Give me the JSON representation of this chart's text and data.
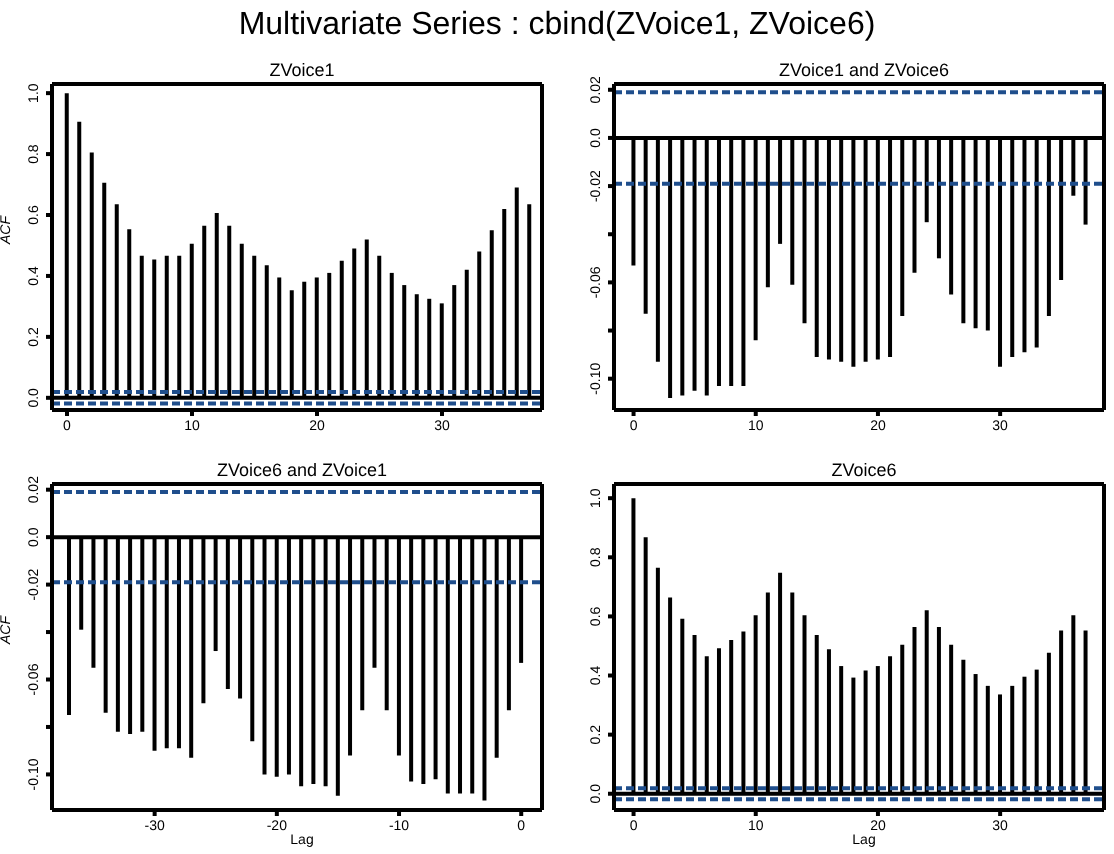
{
  "chart_data": [
    {
      "type": "bar",
      "title": "Multivariate Series : cbind(ZVoice1, ZVoice6)",
      "subtitle": "ZVoice1",
      "ylabel": "ACF",
      "color": "#000000",
      "x": [
        0,
        1,
        2,
        3,
        4,
        5,
        6,
        7,
        8,
        9,
        10,
        11,
        12,
        13,
        14,
        15,
        16,
        17,
        18,
        19,
        20,
        21,
        22,
        23,
        24,
        25,
        26,
        27,
        28,
        29,
        30,
        31,
        32,
        33,
        34,
        35,
        36,
        37
      ],
      "values": [
        1.0,
        0.906,
        0.805,
        0.706,
        0.635,
        0.553,
        0.466,
        0.454,
        0.466,
        0.466,
        0.506,
        0.565,
        0.607,
        0.565,
        0.506,
        0.466,
        0.435,
        0.395,
        0.353,
        0.381,
        0.395,
        0.41,
        0.45,
        0.49,
        0.52,
        0.466,
        0.41,
        0.37,
        0.34,
        0.325,
        0.31,
        0.37,
        0.42,
        0.48,
        0.55,
        0.62,
        0.69,
        0.635
      ],
      "xlim": [
        -1.2,
        38
      ],
      "xticks": [
        0,
        10,
        20,
        30
      ],
      "ylim": [
        -0.04,
        1.03
      ],
      "yticks": [
        {
          "value": 0,
          "label": "0.0"
        },
        0.2,
        0.4,
        0.6,
        0.8,
        {
          "value": 1,
          "label": "1.0"
        }
      ],
      "ref_lines": [
        {
          "axis": "y",
          "value": 0,
          "color": "#000000",
          "line_style": "solid"
        },
        {
          "axis": "y",
          "value": 0.019,
          "color": "#1f4e8c",
          "line_style": "dashed"
        },
        {
          "axis": "y",
          "value": -0.019,
          "color": "#1f4e8c",
          "line_style": "dashed"
        }
      ]
    },
    {
      "type": "bar",
      "title": "ZVoice1 and ZVoice6",
      "color": "#000000",
      "x": [
        0,
        1,
        2,
        3,
        4,
        5,
        6,
        7,
        8,
        9,
        10,
        11,
        12,
        13,
        14,
        15,
        16,
        17,
        18,
        19,
        20,
        21,
        22,
        23,
        24,
        25,
        26,
        27,
        28,
        29,
        30,
        31,
        32,
        33,
        34,
        35,
        36,
        37
      ],
      "values": [
        -0.053,
        -0.073,
        -0.093,
        -0.108,
        -0.107,
        -0.105,
        -0.107,
        -0.103,
        -0.103,
        -0.103,
        -0.084,
        -0.062,
        -0.044,
        -0.061,
        -0.077,
        -0.091,
        -0.092,
        -0.093,
        -0.095,
        -0.093,
        -0.092,
        -0.091,
        -0.074,
        -0.056,
        -0.035,
        -0.05,
        -0.065,
        -0.077,
        -0.079,
        -0.08,
        -0.095,
        -0.091,
        -0.089,
        -0.087,
        -0.074,
        -0.059,
        -0.024,
        -0.036
      ],
      "xlim": [
        -1.6,
        38.5
      ],
      "xticks": [
        0,
        10,
        20,
        30
      ],
      "ylim": [
        -0.113,
        0.0224
      ],
      "yticks": [
        0.02,
        {
          "value": 0,
          "label": "0.0"
        },
        -0.02,
        {
          "value": -0.04,
          "label": null
        },
        -0.06,
        {
          "value": -0.08,
          "label": null
        },
        {
          "value": -0.1,
          "label": "-0.10"
        }
      ],
      "ref_lines": [
        {
          "axis": "y",
          "value": 0,
          "color": "#000000",
          "line_style": "solid"
        },
        {
          "axis": "y",
          "value": 0.019,
          "color": "#1f4e8c",
          "line_style": "dashed"
        },
        {
          "axis": "y",
          "value": -0.019,
          "color": "#1f4e8c",
          "line_style": "dashed"
        }
      ]
    },
    {
      "type": "bar",
      "title": "ZVoice6 and ZVoice1",
      "xlabel": "Lag",
      "ylabel": "ACF",
      "color": "#000000",
      "x": [
        -37,
        -36,
        -35,
        -34,
        -33,
        -32,
        -31,
        -30,
        -29,
        -28,
        -27,
        -26,
        -25,
        -24,
        -23,
        -22,
        -21,
        -20,
        -19,
        -18,
        -17,
        -16,
        -15,
        -14,
        -13,
        -12,
        -11,
        -10,
        -9,
        -8,
        -7,
        -6,
        -5,
        -4,
        -3,
        -2,
        -1,
        0
      ],
      "values": [
        -0.075,
        -0.039,
        -0.055,
        -0.074,
        -0.082,
        -0.083,
        -0.082,
        -0.09,
        -0.089,
        -0.089,
        -0.093,
        -0.07,
        -0.048,
        -0.064,
        -0.068,
        -0.086,
        -0.1,
        -0.101,
        -0.1,
        -0.105,
        -0.104,
        -0.105,
        -0.109,
        -0.092,
        -0.073,
        -0.055,
        -0.073,
        -0.092,
        -0.103,
        -0.104,
        -0.102,
        -0.108,
        -0.108,
        -0.108,
        -0.111,
        -0.093,
        -0.073,
        -0.053
      ],
      "xlim": [
        -38.4,
        1.7
      ],
      "xticks": [
        -30,
        -20,
        -10,
        0
      ],
      "ylim": [
        -0.115,
        0.0224
      ],
      "yticks": [
        0.02,
        {
          "value": 0,
          "label": "0.0"
        },
        -0.02,
        {
          "value": -0.04,
          "label": null
        },
        -0.06,
        {
          "value": -0.08,
          "label": null
        },
        {
          "value": -0.1,
          "label": "-0.10"
        }
      ],
      "ref_lines": [
        {
          "axis": "y",
          "value": 0,
          "color": "#000000",
          "line_style": "solid"
        },
        {
          "axis": "y",
          "value": 0.019,
          "color": "#1f4e8c",
          "line_style": "dashed"
        },
        {
          "axis": "y",
          "value": -0.019,
          "color": "#1f4e8c",
          "line_style": "dashed"
        }
      ]
    },
    {
      "type": "bar",
      "title": "ZVoice6",
      "xlabel": "Lag",
      "color": "#000000",
      "x": [
        0,
        1,
        2,
        3,
        4,
        5,
        6,
        7,
        8,
        9,
        10,
        11,
        12,
        13,
        14,
        15,
        16,
        17,
        18,
        19,
        20,
        21,
        22,
        23,
        24,
        25,
        26,
        27,
        28,
        29,
        30,
        31,
        32,
        33,
        34,
        35,
        36,
        37
      ],
      "values": [
        1.0,
        0.868,
        0.765,
        0.664,
        0.592,
        0.537,
        0.465,
        0.492,
        0.52,
        0.549,
        0.604,
        0.681,
        0.748,
        0.681,
        0.604,
        0.537,
        0.489,
        0.432,
        0.393,
        0.417,
        0.432,
        0.465,
        0.504,
        0.564,
        0.621,
        0.564,
        0.504,
        0.453,
        0.405,
        0.365,
        0.336,
        0.365,
        0.396,
        0.42,
        0.477,
        0.552,
        0.604,
        0.552
      ],
      "xlim": [
        -1.6,
        38.5
      ],
      "xticks": [
        0,
        10,
        20,
        30
      ],
      "ylim": [
        -0.055,
        1.048
      ],
      "yticks": [
        {
          "value": 0,
          "label": "0.0"
        },
        0.2,
        0.4,
        0.6,
        0.8,
        {
          "value": 1,
          "label": "1.0"
        }
      ],
      "ref_lines": [
        {
          "axis": "y",
          "value": 0,
          "color": "#000000",
          "line_style": "solid"
        },
        {
          "axis": "y",
          "value": 0.019,
          "color": "#1f4e8c",
          "line_style": "dashed"
        },
        {
          "axis": "y",
          "value": -0.019,
          "color": "#1f4e8c",
          "line_style": "dashed"
        }
      ]
    }
  ]
}
